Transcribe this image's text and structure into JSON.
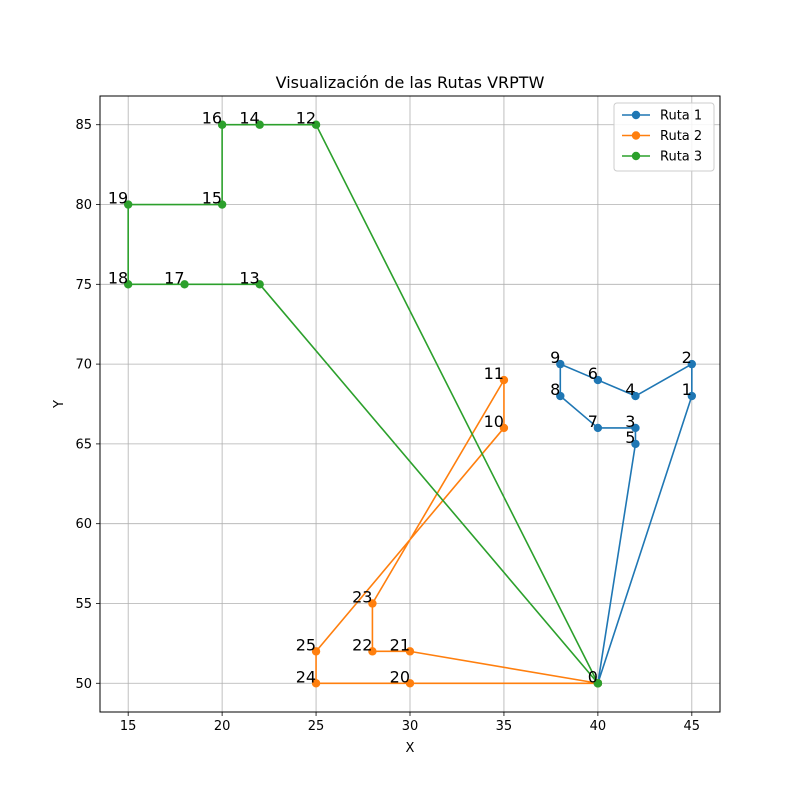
{
  "chart_data": {
    "type": "line",
    "title": "Visualización de las Rutas VRPTW",
    "xlabel": "X",
    "ylabel": "Y",
    "xlim": [
      13.5,
      46.5
    ],
    "ylim": [
      48.2,
      86.8
    ],
    "xticks": [
      15,
      20,
      25,
      30,
      35,
      40,
      45
    ],
    "yticks": [
      50,
      55,
      60,
      65,
      70,
      75,
      80,
      85
    ],
    "grid": true,
    "legend_position": "top-right",
    "series": [
      {
        "name": "Ruta 1",
        "color": "#1f77b4",
        "points": [
          {
            "x": 40,
            "y": 50,
            "label": ""
          },
          {
            "x": 45,
            "y": 68,
            "label": "1"
          },
          {
            "x": 45,
            "y": 70,
            "label": "2"
          },
          {
            "x": 42,
            "y": 68,
            "label": "4"
          },
          {
            "x": 40,
            "y": 69,
            "label": "6"
          },
          {
            "x": 38,
            "y": 70,
            "label": "9"
          },
          {
            "x": 38,
            "y": 68,
            "label": "8"
          },
          {
            "x": 40,
            "y": 66,
            "label": "7"
          },
          {
            "x": 42,
            "y": 66,
            "label": "3"
          },
          {
            "x": 42,
            "y": 65,
            "label": "5"
          },
          {
            "x": 40,
            "y": 50,
            "label": ""
          }
        ]
      },
      {
        "name": "Ruta 2",
        "color": "#ff7f0e",
        "points": [
          {
            "x": 40,
            "y": 50,
            "label": ""
          },
          {
            "x": 30,
            "y": 52,
            "label": "21"
          },
          {
            "x": 28,
            "y": 52,
            "label": "22"
          },
          {
            "x": 28,
            "y": 55,
            "label": "23"
          },
          {
            "x": 35,
            "y": 69,
            "label": "11"
          },
          {
            "x": 35,
            "y": 66,
            "label": "10"
          },
          {
            "x": 25,
            "y": 52,
            "label": "25"
          },
          {
            "x": 25,
            "y": 50,
            "label": "24"
          },
          {
            "x": 30,
            "y": 50,
            "label": "20"
          },
          {
            "x": 40,
            "y": 50,
            "label": ""
          }
        ]
      },
      {
        "name": "Ruta 3",
        "color": "#2ca02c",
        "points": [
          {
            "x": 40,
            "y": 50,
            "label": "0"
          },
          {
            "x": 25,
            "y": 85,
            "label": "12"
          },
          {
            "x": 22,
            "y": 85,
            "label": "14"
          },
          {
            "x": 20,
            "y": 85,
            "label": "16"
          },
          {
            "x": 20,
            "y": 80,
            "label": "15"
          },
          {
            "x": 15,
            "y": 80,
            "label": "19"
          },
          {
            "x": 15,
            "y": 75,
            "label": "18"
          },
          {
            "x": 18,
            "y": 75,
            "label": "17"
          },
          {
            "x": 22,
            "y": 75,
            "label": "13"
          },
          {
            "x": 40,
            "y": 50,
            "label": ""
          }
        ]
      }
    ]
  }
}
